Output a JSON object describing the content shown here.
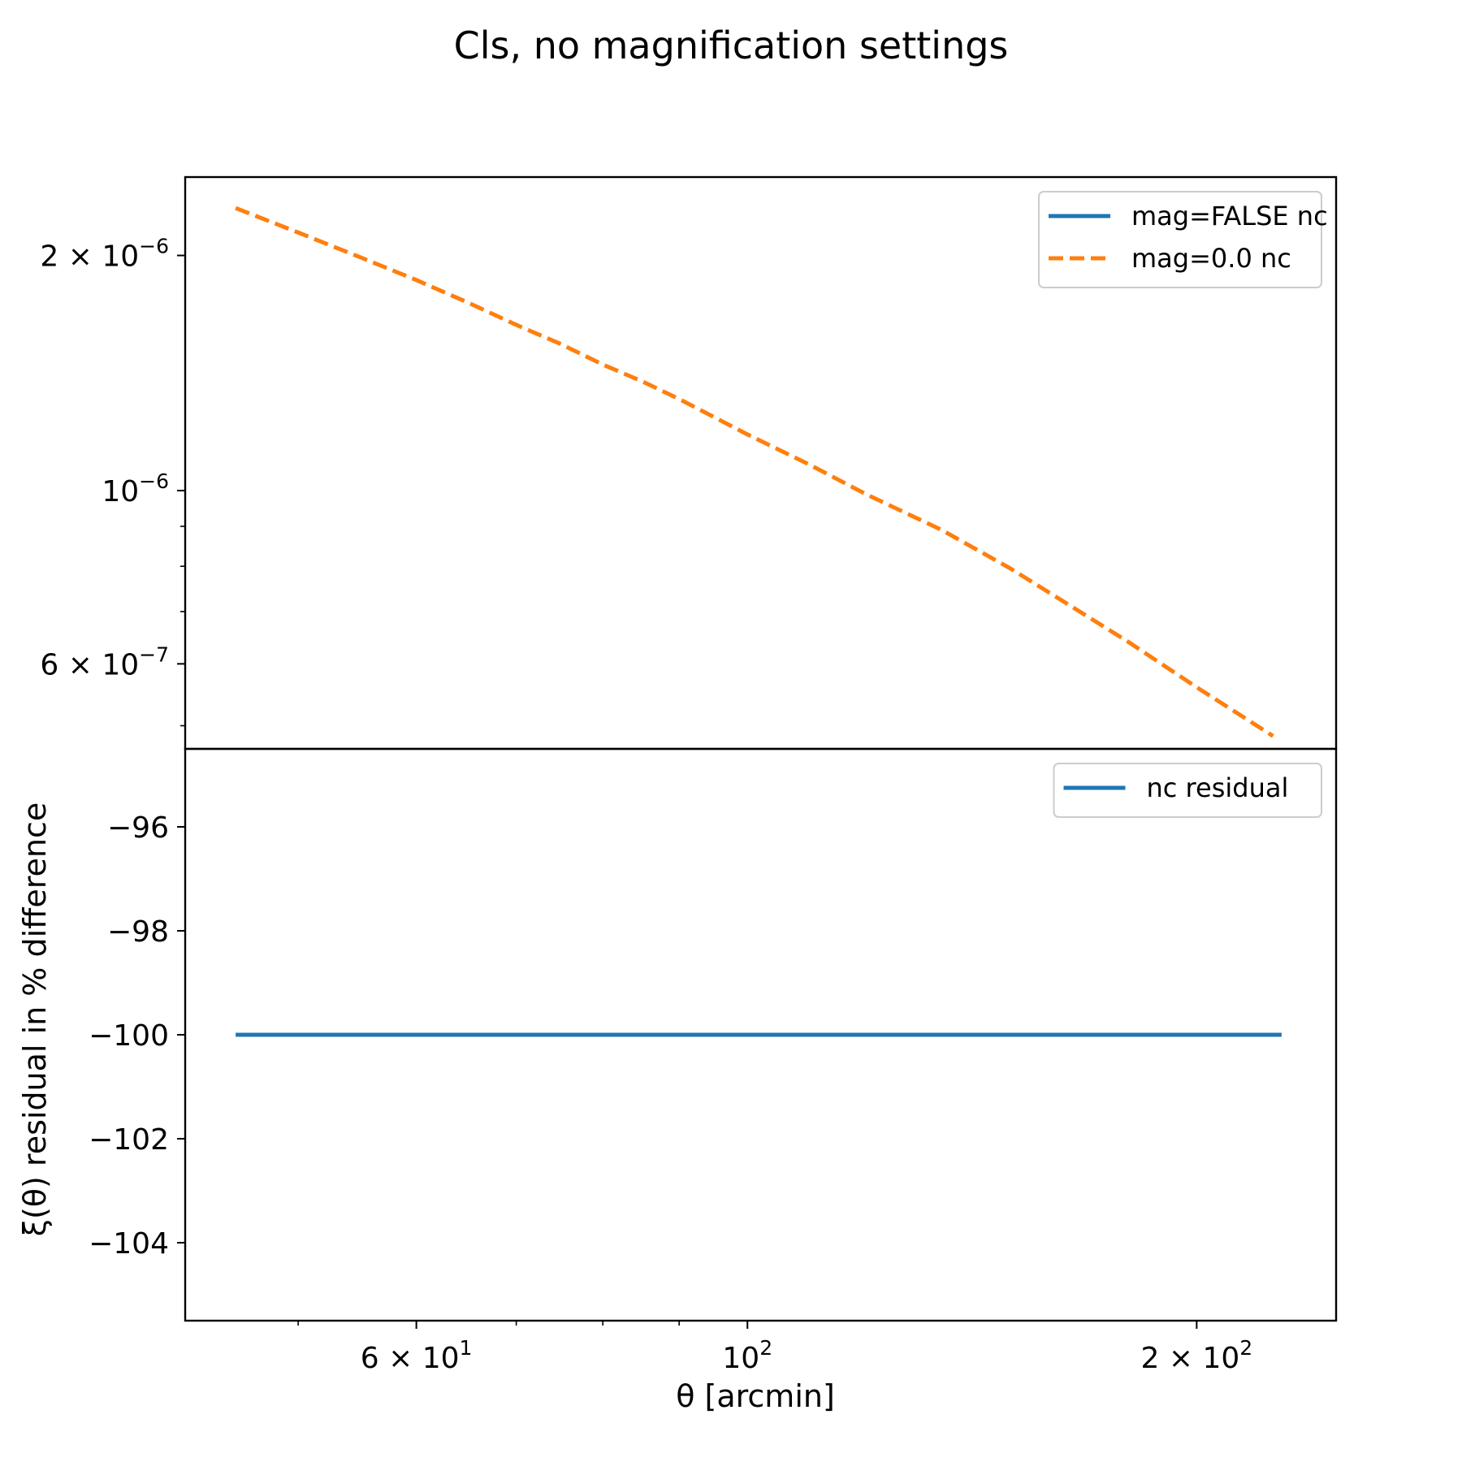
{
  "figure": {
    "title": "Cls, no magnification settings"
  },
  "chart_data": [
    {
      "type": "line",
      "panel": "top",
      "xscale": "log",
      "yscale": "log",
      "xlim": [
        42,
        248
      ],
      "ylim": [
        4.67e-07,
        2.52e-06
      ],
      "xlabel": "",
      "ylabel": "",
      "legend_position": "upper right",
      "y_ticks": [
        {
          "value": 2e-06,
          "mantissa": "2 × 10",
          "exponent": "−6"
        },
        {
          "value": 1e-06,
          "mantissa": "10",
          "exponent": "−6"
        },
        {
          "value": 6e-07,
          "mantissa": "6 × 10",
          "exponent": "−7"
        }
      ],
      "y_minor_ticks": [
        9e-07,
        8e-07,
        7e-07,
        5e-07
      ],
      "series": [
        {
          "name": "mag=FALSE nc",
          "color": "#1f77b4",
          "style": "solid",
          "x": [],
          "y": []
        },
        {
          "name": "mag=0.0 nc",
          "color": "#ff7f0e",
          "style": "dashed",
          "x": [
            45.4,
            50,
            55,
            60,
            65,
            70,
            75,
            80,
            85,
            90,
            100,
            110,
            120,
            135,
            150,
            165,
            180,
            200,
            225
          ],
          "y": [
            2.3e-06,
            2.14e-06,
            1.99e-06,
            1.86e-06,
            1.74e-06,
            1.63e-06,
            1.54e-06,
            1.45e-06,
            1.38e-06,
            1.31e-06,
            1.18e-06,
            1.08e-06,
            9.9e-07,
            8.9e-07,
            7.95e-07,
            7.1e-07,
            6.4e-07,
            5.6e-07,
            4.85e-07
          ]
        }
      ]
    },
    {
      "type": "line",
      "panel": "bottom",
      "xscale": "log",
      "yscale": "linear",
      "xlim": [
        42,
        248
      ],
      "ylim": [
        -105.5,
        -94.5
      ],
      "xlabel": "θ [arcmin]",
      "ylabel": "ξ(θ) residual in % difference",
      "legend_position": "upper right",
      "x_ticks": [
        {
          "value": 60,
          "mantissa": "6 × 10",
          "exponent": "1"
        },
        {
          "value": 100,
          "mantissa": "10",
          "exponent": "2"
        },
        {
          "value": 200,
          "mantissa": "2 × 10",
          "exponent": "2"
        }
      ],
      "x_minor_ticks": [
        50,
        70,
        80,
        90
      ],
      "y_ticks": [
        {
          "value": -96,
          "label": "−96"
        },
        {
          "value": -98,
          "label": "−98"
        },
        {
          "value": -100,
          "label": "−100"
        },
        {
          "value": -102,
          "label": "−102"
        },
        {
          "value": -104,
          "label": "−104"
        }
      ],
      "series": [
        {
          "name": "nc residual",
          "color": "#1f77b4",
          "style": "solid",
          "x": [
            45.4,
            60,
            80,
            100,
            130,
            170,
            228
          ],
          "y": [
            -100,
            -100,
            -100,
            -100,
            -100,
            -100,
            -100
          ]
        }
      ]
    }
  ]
}
